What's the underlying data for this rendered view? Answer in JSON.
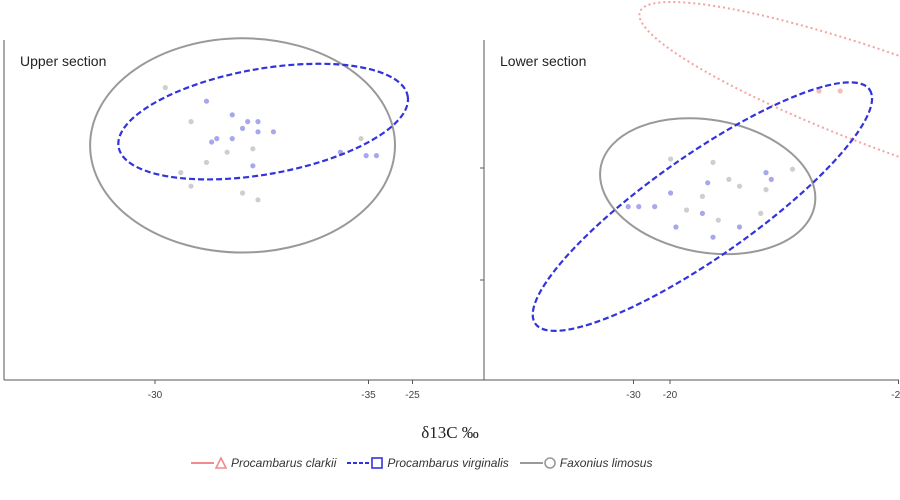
{
  "chart_data": {
    "type": "scatter",
    "xlabel": "δ13C ‰",
    "ylabel": "",
    "xticks": [
      -35,
      -30,
      -25,
      -20
    ],
    "xlim": [
      -35.5,
      -20
    ],
    "ylim": [
      0,
      100
    ],
    "grid": false,
    "legend_position": "bottom-center",
    "legend": [
      {
        "name": "Procambarus clarkii",
        "color": "#f28b8b",
        "line": "solid",
        "marker": "triangle"
      },
      {
        "name": "Procambarus virginalis",
        "color": "#3333dd",
        "line": "dashed",
        "marker": "square"
      },
      {
        "name": "Faxonius limosus",
        "color": "#999999",
        "line": "solid",
        "marker": "circle"
      }
    ],
    "panels": [
      {
        "title": "Upper section",
        "series": [
          {
            "name": "Faxonius limosus",
            "color": "#bdbdbd",
            "points": [
              [
                -29.8,
                86
              ],
              [
                -29.3,
                76
              ],
              [
                -29.5,
                61
              ],
              [
                -29.3,
                57
              ],
              [
                -28.3,
                55
              ],
              [
                -28.0,
                53
              ],
              [
                -28.1,
                68
              ],
              [
                -29.0,
                64
              ],
              [
                -28.6,
                67
              ],
              [
                -26.0,
                71
              ]
            ],
            "ellipse": {
              "cx": -28.3,
              "cy": 69,
              "rx": 2.96,
              "ry": 31.5,
              "angle": 0
            }
          },
          {
            "name": "Procambarus virginalis",
            "color": "#8a8ae6",
            "points": [
              [
                -29.0,
                82
              ],
              [
                -28.5,
                78
              ],
              [
                -28.2,
                76
              ],
              [
                -28.0,
                76
              ],
              [
                -28.3,
                74
              ],
              [
                -28.0,
                73
              ],
              [
                -27.7,
                73
              ],
              [
                -28.5,
                71
              ],
              [
                -28.8,
                71
              ],
              [
                -28.9,
                70
              ],
              [
                -26.4,
                67
              ],
              [
                -25.9,
                66
              ],
              [
                -25.7,
                66
              ],
              [
                -28.1,
                63
              ]
            ],
            "ellipse": {
              "cx": -27.9,
              "cy": 76,
              "rx": 2.85,
              "ry": 15.5,
              "angle": -10
            }
          }
        ]
      },
      {
        "title": "Lower section",
        "series": [
          {
            "name": "Procambarus clarkii",
            "color": "#f4a6a6",
            "points": [
              [
                -24.7,
                91
              ],
              [
                -26.5,
                85
              ],
              [
                -26.1,
                85
              ],
              [
                -24.7,
                78
              ],
              [
                -24.5,
                77
              ],
              [
                -24.2,
                77
              ],
              [
                -23.6,
                78
              ],
              [
                -23.6,
                74
              ]
            ],
            "ellipse": {
              "cx": -24.9,
              "cy": 80,
              "rx": 5.3,
              "ry": 14,
              "angle": 20
            }
          },
          {
            "name": "Faxonius limosus",
            "color": "#bdbdbd",
            "points": [
              [
                -29.3,
                65
              ],
              [
                -28.5,
                64
              ],
              [
                -28.2,
                59
              ],
              [
                -27.0,
                62
              ],
              [
                -28.0,
                57
              ],
              [
                -27.5,
                56
              ],
              [
                -28.7,
                54
              ],
              [
                -29.0,
                50
              ],
              [
                -27.6,
                49
              ],
              [
                -28.4,
                47
              ]
            ],
            "ellipse": {
              "cx": -28.6,
              "cy": 57,
              "rx": 2.05,
              "ry": 19.5,
              "angle": 10
            }
          },
          {
            "name": "Procambarus virginalis",
            "color": "#8a8ae6",
            "points": [
              [
                -27.5,
                61
              ],
              [
                -27.4,
                59
              ],
              [
                -28.6,
                58
              ],
              [
                -29.3,
                55
              ],
              [
                -29.6,
                51
              ],
              [
                -30.1,
                51
              ],
              [
                -29.9,
                51
              ],
              [
                -28.7,
                49
              ],
              [
                -29.2,
                45
              ],
              [
                -28.0,
                45
              ],
              [
                -28.5,
                42
              ]
            ],
            "ellipse": {
              "cx": -28.7,
              "cy": 51,
              "rx": 3.85,
              "ry": 15,
              "angle": -35
            }
          }
        ]
      }
    ]
  }
}
